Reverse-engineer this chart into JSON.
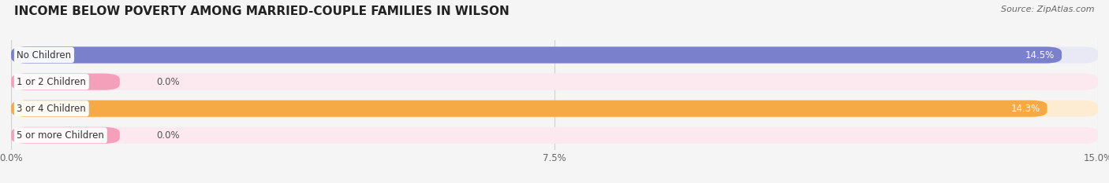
{
  "title": "INCOME BELOW POVERTY AMONG MARRIED-COUPLE FAMILIES IN WILSON",
  "source": "Source: ZipAtlas.com",
  "categories": [
    "No Children",
    "1 or 2 Children",
    "3 or 4 Children",
    "5 or more Children"
  ],
  "values": [
    14.5,
    0.0,
    14.3,
    0.0
  ],
  "bar_colors": [
    "#7b80cc",
    "#f5a0bb",
    "#f5aa45",
    "#f5a0bb"
  ],
  "bar_bg_colors": [
    "#e9e9f5",
    "#fce8ef",
    "#fdecd2",
    "#fce8ef"
  ],
  "xlim": [
    0,
    15.0
  ],
  "xticks": [
    0.0,
    7.5,
    15.0
  ],
  "xticklabels": [
    "0.0%",
    "7.5%",
    "15.0%"
  ],
  "value_label_fontsize": 8.5,
  "category_fontsize": 8.5,
  "title_fontsize": 11,
  "source_fontsize": 8,
  "background_color": "#f5f5f5",
  "text_color": "#333333",
  "grid_color": "#d0d0d0"
}
